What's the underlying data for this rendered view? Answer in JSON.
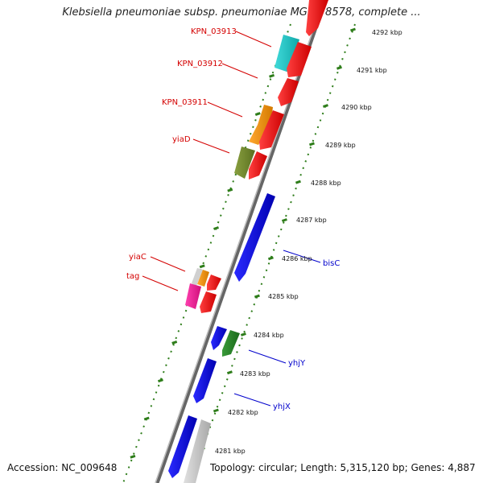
{
  "title": "Klebsiella pneumoniae subsp. pneumoniae MGH 78578, complete ...",
  "accession_label": "Accession: NC_009648",
  "stats_label": "Topology: circular; Length: 5,315,120 bp; Genes: 4,887",
  "colors": {
    "backbone": "#888888",
    "tick": "#2e7d1a",
    "red_label": "#d40000",
    "blue_label": "#0000cc",
    "scale_text": "#111111"
  },
  "scale_ticks": [
    "4292 kbp",
    "4291 kbp",
    "4290 kbp",
    "4289 kbp",
    "4288 kbp",
    "4287 kbp",
    "4286 kbp",
    "4285 kbp",
    "4284 kbp",
    "4283 kbp",
    "4282 kbp",
    "4281 kbp"
  ],
  "labels": [
    {
      "text": "KPN_03913",
      "side": "left",
      "color": "red"
    },
    {
      "text": "KPN_03912",
      "side": "left",
      "color": "red"
    },
    {
      "text": "KPN_03911",
      "side": "left",
      "color": "red"
    },
    {
      "text": "yiaD",
      "side": "left",
      "color": "red"
    },
    {
      "text": "yiaC",
      "side": "left",
      "color": "red"
    },
    {
      "text": "tag",
      "side": "left",
      "color": "red"
    },
    {
      "text": "bisC",
      "side": "right",
      "color": "blue"
    },
    {
      "text": "yhjY",
      "side": "right",
      "color": "blue"
    },
    {
      "text": "yhjX",
      "side": "right",
      "color": "blue"
    }
  ]
}
